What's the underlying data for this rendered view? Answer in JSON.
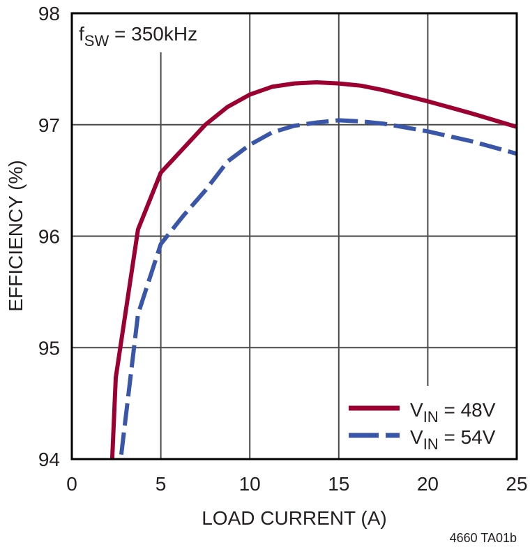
{
  "chart_data": {
    "type": "line",
    "title": "",
    "xlabel": "LOAD CURRENT (A)",
    "ylabel": "EFFICIENCY (%)",
    "xlim": [
      0,
      25
    ],
    "ylim": [
      94,
      98
    ],
    "x_ticks": [
      0,
      5,
      10,
      15,
      20,
      25
    ],
    "y_ticks": [
      94,
      95,
      96,
      97,
      98
    ],
    "grid": true,
    "legend_position": "lower right",
    "annotation": {
      "main": "f",
      "sub": "SW",
      "rest": " = 350kHz"
    },
    "figure_id": "4660 TA01b",
    "series": [
      {
        "name": "VIN = 48V",
        "label_main": "V",
        "label_sub": "IN",
        "label_rest": " = 48V",
        "color": "#9b0031",
        "style": "solid",
        "x": [
          2.27,
          2.47,
          3.72,
          5.0,
          7.5,
          8.75,
          10.0,
          11.25,
          12.5,
          13.75,
          15.0,
          16.25,
          17.5,
          20.0,
          22.5,
          25.0
        ],
        "y": [
          94.0,
          94.73,
          96.06,
          96.57,
          97.0,
          97.16,
          97.27,
          97.34,
          97.37,
          97.38,
          97.37,
          97.35,
          97.31,
          97.21,
          97.1,
          96.98
        ]
      },
      {
        "name": "VIN = 54V",
        "label_main": "V",
        "label_sub": "IN",
        "label_rest": " = 54V",
        "color": "#3a56a8",
        "style": "dashed",
        "x": [
          2.78,
          3.72,
          5.0,
          6.25,
          7.5,
          8.75,
          10.0,
          11.25,
          12.5,
          13.75,
          15.0,
          16.25,
          17.5,
          20.0,
          22.5,
          25.0
        ],
        "y": [
          94.04,
          95.3,
          95.93,
          96.18,
          96.41,
          96.67,
          96.82,
          96.93,
          96.99,
          97.02,
          97.04,
          97.03,
          97.01,
          96.94,
          96.85,
          96.74
        ]
      }
    ]
  }
}
